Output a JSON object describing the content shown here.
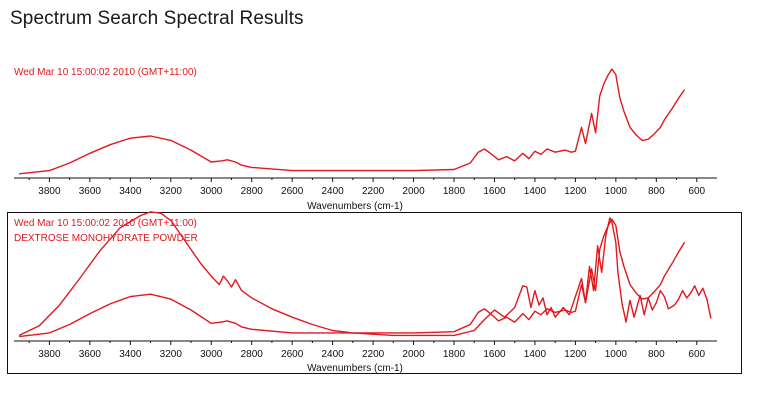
{
  "page": {
    "title": "Spectrum Search Spectral Results"
  },
  "colors": {
    "spectrum": "#e0191f",
    "axis": "#111111",
    "frame": "#111111",
    "background": "#ffffff"
  },
  "chart_data": [
    {
      "type": "line",
      "title": "Wed Mar 10 15:00:02 2010 (GMT+11:00)",
      "subtitle": "",
      "xlabel": "Wavenumbers (cm-1)",
      "ylabel": "",
      "x_reversed": true,
      "xlim": [
        3975,
        500
      ],
      "ylim": [
        0,
        1
      ],
      "xticks": [
        3800,
        3600,
        3400,
        3200,
        3000,
        2800,
        2600,
        2400,
        2200,
        2000,
        1800,
        1600,
        1400,
        1200,
        1000,
        800,
        600
      ],
      "grid": false,
      "legend": "none",
      "series": [
        {
          "color": "#e0191f",
          "x": [
            3950,
            3800,
            3700,
            3600,
            3500,
            3400,
            3300,
            3200,
            3100,
            3000,
            2950,
            2920,
            2880,
            2850,
            2800,
            2600,
            2400,
            2200,
            2000,
            1800,
            1720,
            1680,
            1650,
            1620,
            1580,
            1540,
            1500,
            1460,
            1430,
            1400,
            1370,
            1340,
            1300,
            1250,
            1220,
            1200,
            1170,
            1150,
            1120,
            1100,
            1080,
            1060,
            1040,
            1020,
            1000,
            980,
            960,
            930,
            900,
            870,
            840,
            810,
            780,
            760,
            720,
            690,
            660
          ],
          "y": [
            0.02,
            0.05,
            0.12,
            0.21,
            0.29,
            0.35,
            0.37,
            0.33,
            0.24,
            0.13,
            0.14,
            0.15,
            0.13,
            0.1,
            0.08,
            0.05,
            0.05,
            0.05,
            0.05,
            0.06,
            0.12,
            0.22,
            0.25,
            0.21,
            0.15,
            0.18,
            0.14,
            0.21,
            0.16,
            0.23,
            0.2,
            0.25,
            0.22,
            0.24,
            0.22,
            0.23,
            0.45,
            0.3,
            0.58,
            0.4,
            0.74,
            0.85,
            0.93,
            0.99,
            0.94,
            0.72,
            0.6,
            0.45,
            0.38,
            0.33,
            0.34,
            0.39,
            0.45,
            0.52,
            0.63,
            0.72,
            0.8
          ]
        }
      ]
    },
    {
      "type": "line",
      "title": "Wed Mar 10 15:00:02 2010 (GMT+11:00)",
      "subtitle": "DEXTROSE MONOHYDRATE POWDER",
      "xlabel": "Wavenumbers (cm-1)",
      "ylabel": "",
      "x_reversed": true,
      "xlim": [
        3975,
        500
      ],
      "ylim": [
        0,
        1
      ],
      "xticks": [
        3800,
        3600,
        3400,
        3200,
        3000,
        2800,
        2600,
        2400,
        2200,
        2000,
        1800,
        1600,
        1400,
        1200,
        1000,
        800,
        600
      ],
      "grid": false,
      "legend": "none",
      "series": [
        {
          "color": "#e0191f",
          "x": [
            3950,
            3800,
            3700,
            3600,
            3500,
            3400,
            3300,
            3200,
            3100,
            3000,
            2950,
            2920,
            2880,
            2850,
            2800,
            2600,
            2400,
            2200,
            2000,
            1800,
            1720,
            1680,
            1650,
            1620,
            1580,
            1540,
            1500,
            1460,
            1430,
            1400,
            1370,
            1340,
            1300,
            1250,
            1220,
            1200,
            1170,
            1150,
            1120,
            1100,
            1080,
            1060,
            1040,
            1020,
            1000,
            980,
            960,
            930,
            900,
            870,
            840,
            810,
            780,
            760,
            720,
            690,
            660
          ],
          "y": [
            0.02,
            0.05,
            0.12,
            0.21,
            0.29,
            0.35,
            0.37,
            0.33,
            0.24,
            0.13,
            0.14,
            0.15,
            0.13,
            0.1,
            0.08,
            0.05,
            0.05,
            0.05,
            0.05,
            0.06,
            0.12,
            0.22,
            0.25,
            0.21,
            0.15,
            0.18,
            0.14,
            0.21,
            0.16,
            0.23,
            0.2,
            0.25,
            0.22,
            0.24,
            0.22,
            0.23,
            0.45,
            0.3,
            0.58,
            0.4,
            0.74,
            0.85,
            0.93,
            0.99,
            0.94,
            0.72,
            0.6,
            0.45,
            0.38,
            0.33,
            0.34,
            0.39,
            0.45,
            0.52,
            0.63,
            0.72,
            0.8
          ]
        },
        {
          "color": "#e0191f",
          "x": [
            3950,
            3850,
            3750,
            3650,
            3550,
            3450,
            3350,
            3300,
            3250,
            3200,
            3150,
            3100,
            3050,
            3000,
            2960,
            2940,
            2920,
            2900,
            2880,
            2850,
            2800,
            2700,
            2600,
            2500,
            2400,
            2300,
            2200,
            2100,
            2000,
            1900,
            1800,
            1700,
            1650,
            1600,
            1550,
            1500,
            1460,
            1440,
            1420,
            1400,
            1380,
            1360,
            1340,
            1320,
            1300,
            1260,
            1230,
            1200,
            1170,
            1150,
            1130,
            1110,
            1090,
            1070,
            1050,
            1030,
            1020,
            1000,
            990,
            970,
            950,
            930,
            910,
            880,
            860,
            840,
            820,
            800,
            780,
            760,
            740,
            710,
            690,
            670,
            650,
            630,
            610,
            590,
            570,
            550,
            530
          ],
          "y": [
            0.03,
            0.11,
            0.28,
            0.5,
            0.73,
            0.92,
            1.02,
            1.05,
            1.04,
            0.98,
            0.86,
            0.74,
            0.62,
            0.52,
            0.45,
            0.52,
            0.48,
            0.43,
            0.49,
            0.4,
            0.34,
            0.25,
            0.18,
            0.12,
            0.07,
            0.05,
            0.04,
            0.03,
            0.03,
            0.03,
            0.03,
            0.07,
            0.16,
            0.24,
            0.18,
            0.26,
            0.44,
            0.43,
            0.26,
            0.4,
            0.28,
            0.34,
            0.2,
            0.26,
            0.18,
            0.26,
            0.2,
            0.35,
            0.5,
            0.3,
            0.6,
            0.4,
            0.77,
            0.55,
            0.85,
            1.0,
            0.97,
            0.8,
            0.55,
            0.3,
            0.14,
            0.32,
            0.18,
            0.36,
            0.2,
            0.34,
            0.24,
            0.3,
            0.4,
            0.35,
            0.25,
            0.28,
            0.33,
            0.4,
            0.34,
            0.38,
            0.44,
            0.36,
            0.42,
            0.33,
            0.17
          ]
        }
      ]
    }
  ]
}
